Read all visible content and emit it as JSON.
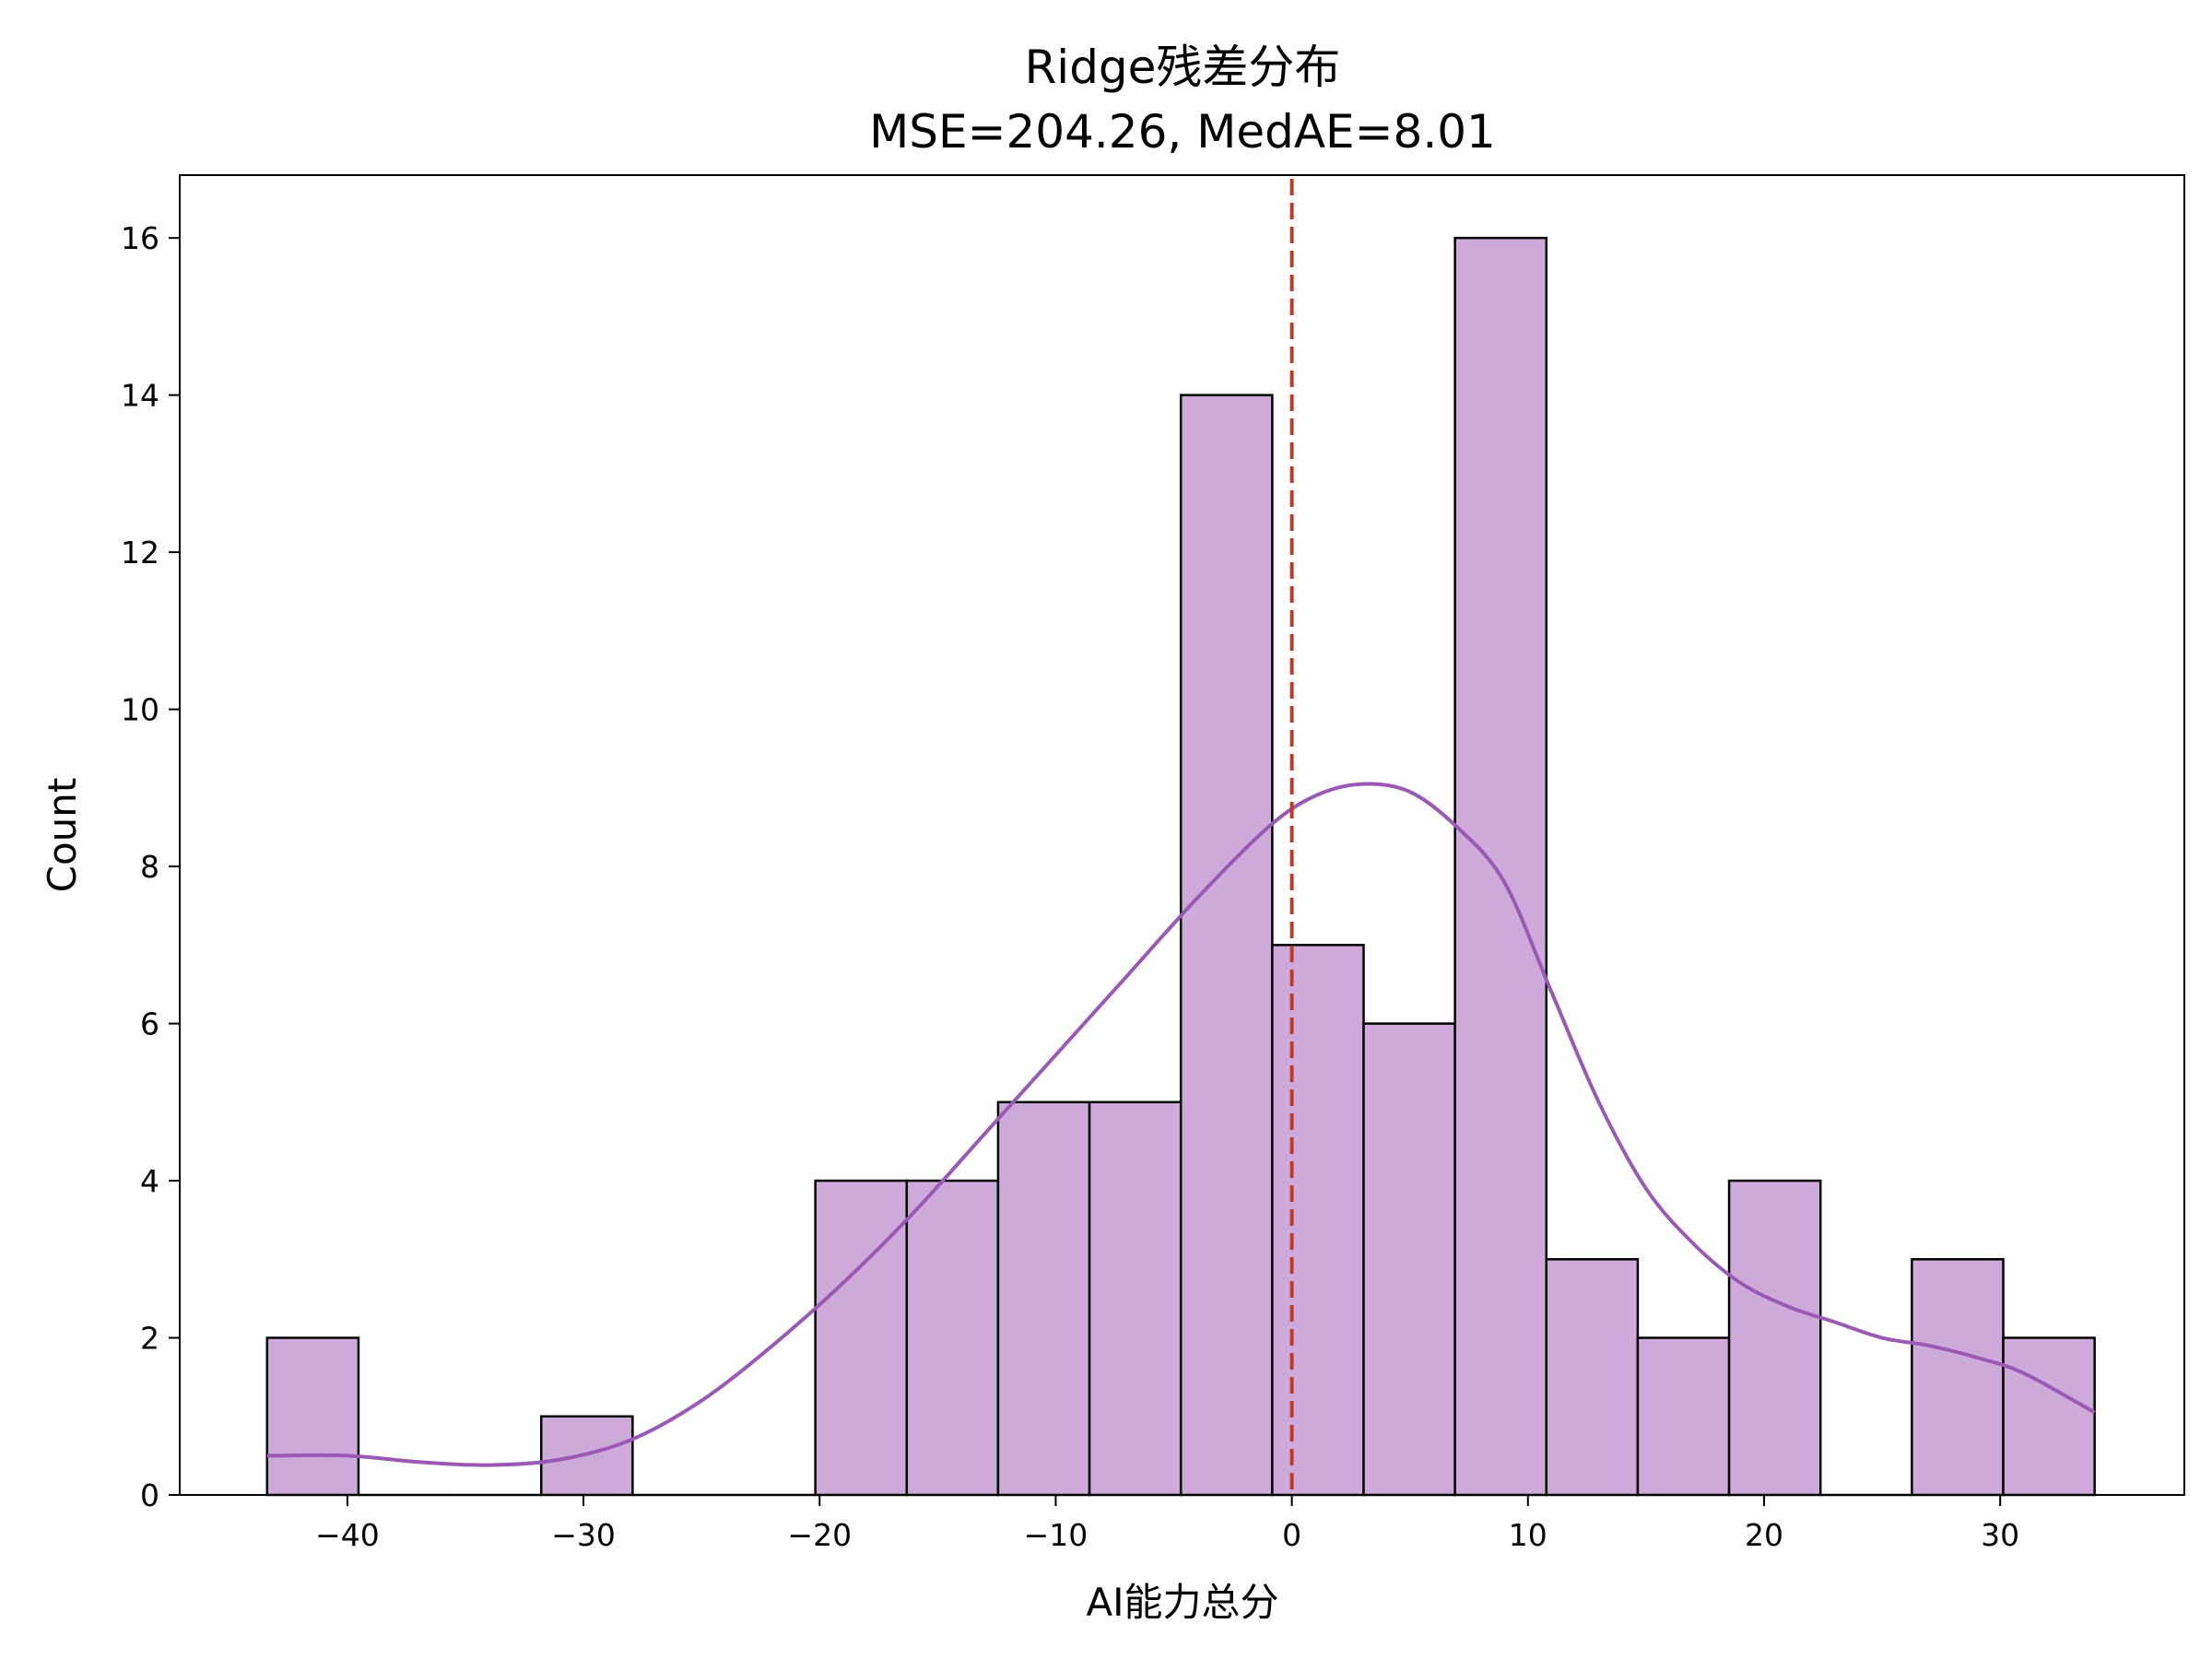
{
  "chart_data": {
    "type": "histogram",
    "title": "Ridge残差分布",
    "subtitle": "MSE=204.26, MedAE=8.01",
    "xlabel": "AI能力总分",
    "ylabel": "Count",
    "xlim": [
      -47.1,
      37.8
    ],
    "ylim": [
      0,
      16.8
    ],
    "x_ticks": [
      -40,
      -30,
      -20,
      -10,
      0,
      10,
      20,
      30
    ],
    "x_tick_labels": [
      "−40",
      "−30",
      "−20",
      "−10",
      "0",
      "10",
      "20",
      "30"
    ],
    "y_ticks": [
      0,
      2,
      4,
      6,
      8,
      10,
      12,
      14,
      16
    ],
    "y_tick_labels": [
      "0",
      "2",
      "4",
      "6",
      "8",
      "10",
      "12",
      "14",
      "16"
    ],
    "bin_edges": [
      -43.4,
      -39.53,
      -35.66,
      -31.79,
      -27.92,
      -24.05,
      -20.18,
      -16.31,
      -12.44,
      -8.57,
      -4.7,
      -0.83,
      3.04,
      6.91,
      10.78,
      14.65,
      18.52,
      22.39,
      26.26,
      30.13,
      34.0
    ],
    "counts": [
      2,
      0,
      0,
      1,
      0,
      0,
      4,
      4,
      5,
      5,
      14,
      7,
      6,
      16,
      3,
      2,
      4,
      0,
      3,
      2
    ],
    "bar_color": "#cdaad9",
    "bar_edge_color": "#000000",
    "kde": {
      "color": "#9b59b6",
      "x": [
        -43.4,
        -40.0,
        -37.0,
        -34.0,
        -31.0,
        -28.0,
        -25.0,
        -22.0,
        -19.0,
        -16.0,
        -13.0,
        -10.0,
        -7.0,
        -4.0,
        -1.0,
        1.0,
        3.0,
        5.0,
        7.0,
        9.0,
        11.0,
        13.0,
        15.0,
        17.0,
        19.0,
        21.0,
        23.0,
        25.0,
        27.0,
        29.0,
        31.0,
        34.0
      ],
      "y": [
        0.5,
        0.5,
        0.42,
        0.38,
        0.45,
        0.7,
        1.2,
        1.9,
        2.7,
        3.6,
        4.6,
        5.6,
        6.6,
        7.6,
        8.5,
        8.9,
        9.05,
        8.95,
        8.5,
        7.8,
        6.4,
        5.0,
        3.9,
        3.2,
        2.7,
        2.4,
        2.2,
        2.0,
        1.9,
        1.75,
        1.55,
        1.05
      ]
    },
    "reference_line": {
      "x": 0,
      "color": "#c0392b",
      "style": "dashed"
    },
    "grid": false,
    "legend": "none"
  }
}
